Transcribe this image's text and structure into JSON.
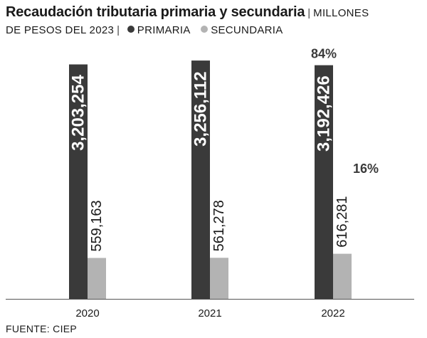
{
  "header": {
    "title": "Recaudación tributaria primaria y secundaria",
    "subtitle_part1": "MILLONES",
    "subtitle_part2": "DE PESOS DEL 2023"
  },
  "legend": [
    {
      "label": "PRIMARIA",
      "color": "#3a3a3a"
    },
    {
      "label": "SECUNDARIA",
      "color": "#b3b3b3"
    }
  ],
  "chart_data": {
    "type": "bar",
    "categories": [
      "2020",
      "2021",
      "2022"
    ],
    "series": [
      {
        "name": "PRIMARIA",
        "values": [
          3203254,
          3256112,
          3192426
        ],
        "labels": [
          "3,203,254",
          "3,256,112",
          "3,192,426"
        ],
        "color": "#3a3a3a"
      },
      {
        "name": "SECUNDARIA",
        "values": [
          559163,
          561278,
          616281
        ],
        "labels": [
          "559,163",
          "561,278",
          "616,281"
        ],
        "color": "#b3b3b3"
      }
    ],
    "ylim": [
      0,
      3500000
    ],
    "annotations": [
      {
        "category": "2022",
        "series": "PRIMARIA",
        "text": "84%"
      },
      {
        "category": "2022",
        "series": "SECUNDARIA",
        "text": "16%"
      }
    ]
  },
  "source": "FUENTE: CIEP"
}
